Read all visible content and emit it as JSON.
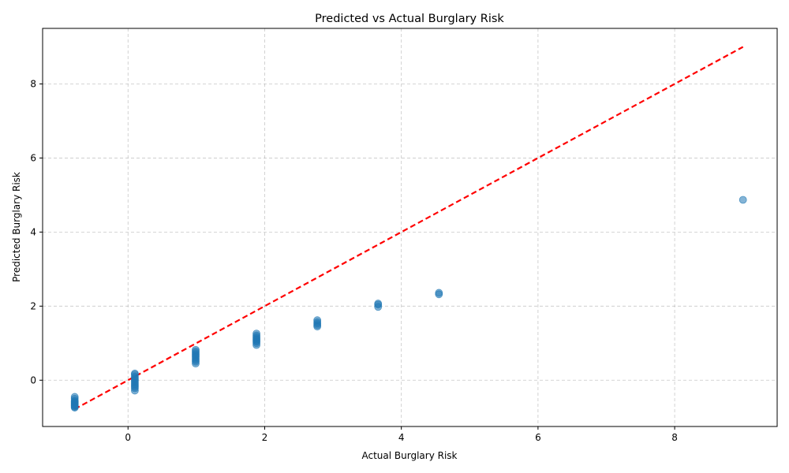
{
  "chart_data": {
    "type": "scatter",
    "title": "Predicted vs Actual Burglary Risk",
    "xlabel": "Actual Burglary Risk",
    "ylabel": "Predicted Burglary Risk",
    "xlim": [
      -1.25,
      9.5
    ],
    "ylim": [
      -1.25,
      9.5
    ],
    "xticks": [
      0,
      2,
      4,
      6,
      8
    ],
    "yticks": [
      0,
      2,
      4,
      6,
      8
    ],
    "grid": true,
    "point_color": "#1f77b4",
    "reference_line": {
      "from": [
        -0.78,
        -0.78
      ],
      "to": [
        9.0,
        9.0
      ],
      "color": "#ff0000",
      "style": "dashed"
    },
    "points": [
      {
        "x": -0.78,
        "y": -0.45
      },
      {
        "x": -0.78,
        "y": -0.5
      },
      {
        "x": -0.78,
        "y": -0.55
      },
      {
        "x": -0.78,
        "y": -0.58
      },
      {
        "x": -0.78,
        "y": -0.6
      },
      {
        "x": -0.78,
        "y": -0.62
      },
      {
        "x": -0.78,
        "y": -0.64
      },
      {
        "x": -0.78,
        "y": -0.66
      },
      {
        "x": -0.78,
        "y": -0.68
      },
      {
        "x": -0.78,
        "y": -0.7
      },
      {
        "x": -0.78,
        "y": -0.72
      },
      {
        "x": -0.78,
        "y": -0.74
      },
      {
        "x": 0.1,
        "y": 0.18
      },
      {
        "x": 0.1,
        "y": 0.15
      },
      {
        "x": 0.1,
        "y": 0.1
      },
      {
        "x": 0.1,
        "y": 0.06
      },
      {
        "x": 0.1,
        "y": 0.02
      },
      {
        "x": 0.1,
        "y": -0.02
      },
      {
        "x": 0.1,
        "y": -0.06
      },
      {
        "x": 0.1,
        "y": -0.1
      },
      {
        "x": 0.1,
        "y": -0.14
      },
      {
        "x": 0.1,
        "y": -0.18
      },
      {
        "x": 0.1,
        "y": -0.22
      },
      {
        "x": 0.1,
        "y": -0.28
      },
      {
        "x": 0.99,
        "y": 0.82
      },
      {
        "x": 0.99,
        "y": 0.78
      },
      {
        "x": 0.99,
        "y": 0.74
      },
      {
        "x": 0.99,
        "y": 0.7
      },
      {
        "x": 0.99,
        "y": 0.66
      },
      {
        "x": 0.99,
        "y": 0.62
      },
      {
        "x": 0.99,
        "y": 0.58
      },
      {
        "x": 0.99,
        "y": 0.54
      },
      {
        "x": 0.99,
        "y": 0.5
      },
      {
        "x": 0.99,
        "y": 0.45
      },
      {
        "x": 1.88,
        "y": 1.26
      },
      {
        "x": 1.88,
        "y": 1.21
      },
      {
        "x": 1.88,
        "y": 1.17
      },
      {
        "x": 1.88,
        "y": 1.13
      },
      {
        "x": 1.88,
        "y": 1.1
      },
      {
        "x": 1.88,
        "y": 1.07
      },
      {
        "x": 1.88,
        "y": 1.04
      },
      {
        "x": 1.88,
        "y": 1.0
      },
      {
        "x": 1.88,
        "y": 0.95
      },
      {
        "x": 2.77,
        "y": 1.62
      },
      {
        "x": 2.77,
        "y": 1.57
      },
      {
        "x": 2.77,
        "y": 1.53
      },
      {
        "x": 2.77,
        "y": 1.49
      },
      {
        "x": 2.77,
        "y": 1.45
      },
      {
        "x": 3.66,
        "y": 2.07
      },
      {
        "x": 3.66,
        "y": 2.04
      },
      {
        "x": 3.66,
        "y": 1.98
      },
      {
        "x": 4.55,
        "y": 2.36
      },
      {
        "x": 4.55,
        "y": 2.32
      },
      {
        "x": 9.0,
        "y": 4.87
      }
    ]
  }
}
